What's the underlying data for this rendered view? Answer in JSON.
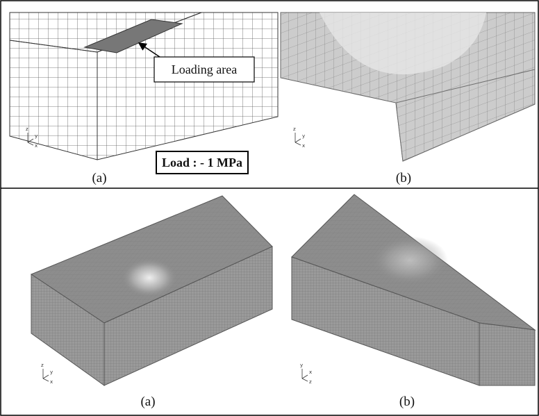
{
  "figure": {
    "top": {
      "loading_label": "Loading area",
      "load_label": "Load : - 1 MPa",
      "captions": [
        "(a)",
        "(b)"
      ],
      "triads": [
        [
          "z",
          "y",
          "x"
        ],
        [
          "z",
          "y",
          "x"
        ]
      ]
    },
    "bottom": {
      "captions": [
        "(a)",
        "(b)"
      ],
      "triads": [
        [
          "z",
          "y",
          "x"
        ],
        [
          "y",
          "x",
          "z"
        ]
      ]
    }
  }
}
